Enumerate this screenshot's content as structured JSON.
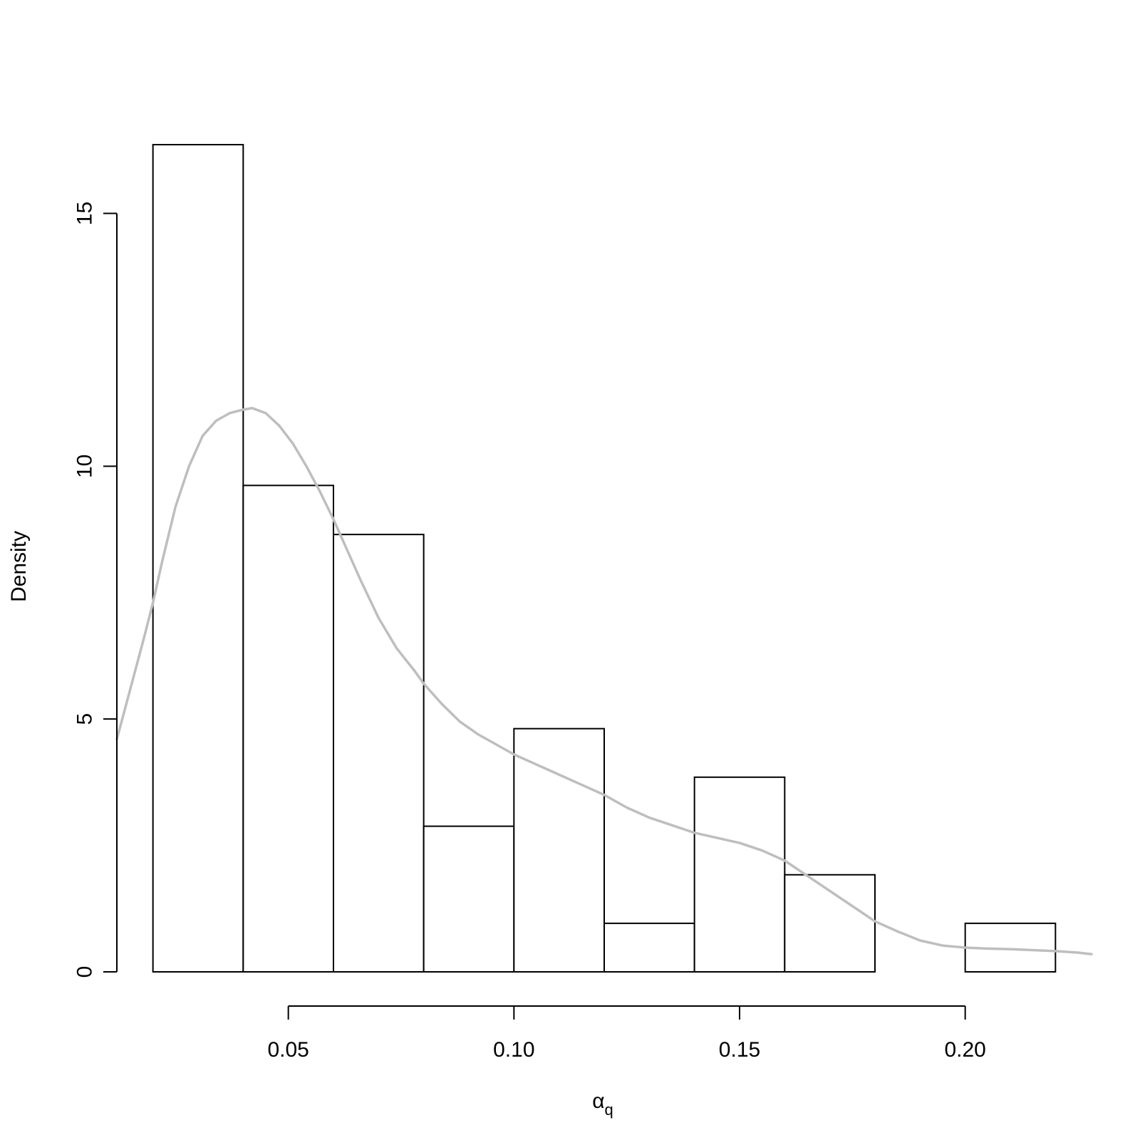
{
  "chart_data": {
    "type": "bar",
    "subtype": "histogram with density curve",
    "title": "",
    "xlabel": {
      "base": "α",
      "subscript": "q"
    },
    "ylabel": "Density",
    "xlim": [
      0.012,
      0.228
    ],
    "ylim": [
      0,
      16.6
    ],
    "x_ticks": [
      {
        "value": 0.05,
        "label": "0.05"
      },
      {
        "value": 0.1,
        "label": "0.10"
      },
      {
        "value": 0.15,
        "label": "0.15"
      },
      {
        "value": 0.2,
        "label": "0.20"
      }
    ],
    "y_ticks": [
      {
        "value": 0,
        "label": "0"
      },
      {
        "value": 5,
        "label": "5"
      },
      {
        "value": 10,
        "label": "10"
      },
      {
        "value": 15,
        "label": "15"
      }
    ],
    "bins": [
      {
        "x0": 0.02,
        "x1": 0.04,
        "density": 16.36
      },
      {
        "x0": 0.04,
        "x1": 0.06,
        "density": 9.62
      },
      {
        "x0": 0.06,
        "x1": 0.08,
        "density": 8.65
      },
      {
        "x0": 0.08,
        "x1": 0.1,
        "density": 2.88
      },
      {
        "x0": 0.1,
        "x1": 0.12,
        "density": 4.81
      },
      {
        "x0": 0.12,
        "x1": 0.14,
        "density": 0.96
      },
      {
        "x0": 0.14,
        "x1": 0.16,
        "density": 3.85
      },
      {
        "x0": 0.16,
        "x1": 0.18,
        "density": 1.92
      },
      {
        "x0": 0.18,
        "x1": 0.2,
        "density": 0.0
      },
      {
        "x0": 0.2,
        "x1": 0.22,
        "density": 0.96
      }
    ],
    "density_curve": {
      "color": "#bebebe",
      "points": [
        [
          0.012,
          4.6
        ],
        [
          0.015,
          5.6
        ],
        [
          0.018,
          6.6
        ],
        [
          0.02,
          7.3
        ],
        [
          0.022,
          8.1
        ],
        [
          0.025,
          9.2
        ],
        [
          0.028,
          10.0
        ],
        [
          0.031,
          10.6
        ],
        [
          0.034,
          10.9
        ],
        [
          0.037,
          11.05
        ],
        [
          0.04,
          11.12
        ],
        [
          0.042,
          11.15
        ],
        [
          0.045,
          11.05
        ],
        [
          0.048,
          10.8
        ],
        [
          0.051,
          10.45
        ],
        [
          0.054,
          10.0
        ],
        [
          0.057,
          9.5
        ],
        [
          0.06,
          8.95
        ],
        [
          0.063,
          8.35
        ],
        [
          0.066,
          7.75
        ],
        [
          0.07,
          7.0
        ],
        [
          0.074,
          6.4
        ],
        [
          0.078,
          5.95
        ],
        [
          0.08,
          5.7
        ],
        [
          0.084,
          5.3
        ],
        [
          0.088,
          4.95
        ],
        [
          0.092,
          4.7
        ],
        [
          0.096,
          4.5
        ],
        [
          0.1,
          4.3
        ],
        [
          0.105,
          4.1
        ],
        [
          0.11,
          3.9
        ],
        [
          0.115,
          3.7
        ],
        [
          0.12,
          3.5
        ],
        [
          0.125,
          3.25
        ],
        [
          0.13,
          3.05
        ],
        [
          0.135,
          2.9
        ],
        [
          0.14,
          2.75
        ],
        [
          0.145,
          2.65
        ],
        [
          0.15,
          2.55
        ],
        [
          0.155,
          2.4
        ],
        [
          0.16,
          2.2
        ],
        [
          0.165,
          1.9
        ],
        [
          0.17,
          1.6
        ],
        [
          0.175,
          1.3
        ],
        [
          0.18,
          1.0
        ],
        [
          0.185,
          0.8
        ],
        [
          0.19,
          0.62
        ],
        [
          0.195,
          0.52
        ],
        [
          0.2,
          0.48
        ],
        [
          0.205,
          0.46
        ],
        [
          0.21,
          0.45
        ],
        [
          0.215,
          0.43
        ],
        [
          0.22,
          0.41
        ],
        [
          0.225,
          0.38
        ],
        [
          0.228,
          0.35
        ]
      ]
    }
  }
}
